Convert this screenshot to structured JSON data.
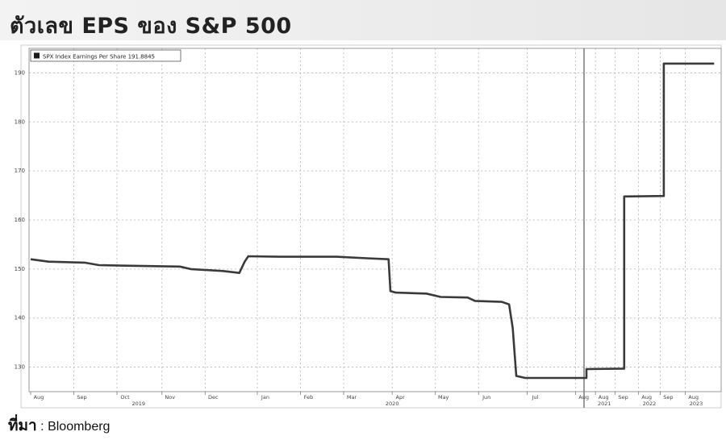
{
  "header": {
    "title": "ตัวเลข EPS ของ S&P 500"
  },
  "source": {
    "label": "ที่มา",
    "separator": ":",
    "name": "Bloomberg"
  },
  "chart_data": {
    "type": "line",
    "title": "",
    "xlabel": "",
    "ylabel": "",
    "ylim": [
      125,
      195
    ],
    "yticks": [
      "130",
      "140",
      "150",
      "160",
      "170",
      "180",
      "190"
    ],
    "grid": true,
    "legend_position": "top-left",
    "x_range": [
      0,
      38.3
    ],
    "x_ticks": [
      {
        "label": "Aug",
        "at": 0
      },
      {
        "label": "Sep",
        "at": 2.4
      },
      {
        "label": "Oct",
        "at": 4.8
      },
      {
        "label": "Nov",
        "at": 7.3
      },
      {
        "label": "Dec",
        "at": 9.7
      },
      {
        "label": "Jan",
        "at": 12.6
      },
      {
        "label": "Feb",
        "at": 15
      },
      {
        "label": "Mar",
        "at": 17.4
      },
      {
        "label": "Apr",
        "at": 20.1
      },
      {
        "label": "May",
        "at": 22.5
      },
      {
        "label": "Jun",
        "at": 24.9
      },
      {
        "label": "Jul",
        "at": 27.6
      },
      {
        "label": "Aug",
        "at": 30.3
      },
      {
        "label": "Aug",
        "at": 31.4
      },
      {
        "label": "Sep",
        "at": 32.5
      },
      {
        "label": "Aug",
        "at": 33.8
      },
      {
        "label": "Sep",
        "at": 35.0
      },
      {
        "label": "Aug",
        "at": 36.4
      }
    ],
    "x_group_labels": [
      {
        "label": "2019",
        "at": 6
      },
      {
        "label": "2020",
        "at": 20.1
      },
      {
        "label": "2021",
        "at": 31.9
      },
      {
        "label": "2022",
        "at": 34.4
      },
      {
        "label": "2023",
        "at": 37.0
      }
    ],
    "series": [
      {
        "name": "SPX Index Earnings Per Share 191.8845",
        "color": "#3a3a3a",
        "points": [
          [
            0,
            152.0
          ],
          [
            1.0,
            151.5
          ],
          [
            3.0,
            151.3
          ],
          [
            3.8,
            150.8
          ],
          [
            5.0,
            150.7
          ],
          [
            8.3,
            150.5
          ],
          [
            8.9,
            150.0
          ],
          [
            10.7,
            149.6
          ],
          [
            11.6,
            149.2
          ],
          [
            11.9,
            151.5
          ],
          [
            12.1,
            152.6
          ],
          [
            13.8,
            152.5
          ],
          [
            17.0,
            152.5
          ],
          [
            18.7,
            152.2
          ],
          [
            19.9,
            152.0
          ],
          [
            20.0,
            145.5
          ],
          [
            20.3,
            145.2
          ],
          [
            22.0,
            145.0
          ],
          [
            22.8,
            144.3
          ],
          [
            24.3,
            144.2
          ],
          [
            24.7,
            143.5
          ],
          [
            26.2,
            143.3
          ],
          [
            26.6,
            142.8
          ],
          [
            26.8,
            138.0
          ],
          [
            27.0,
            128.2
          ],
          [
            27.5,
            127.8
          ],
          [
            30.9,
            127.8
          ],
          [
            30.9,
            129.6
          ],
          [
            33.0,
            129.7
          ],
          [
            33.0,
            164.8
          ],
          [
            35.2,
            164.9
          ],
          [
            35.2,
            191.9
          ],
          [
            38.0,
            191.9
          ]
        ]
      }
    ]
  }
}
